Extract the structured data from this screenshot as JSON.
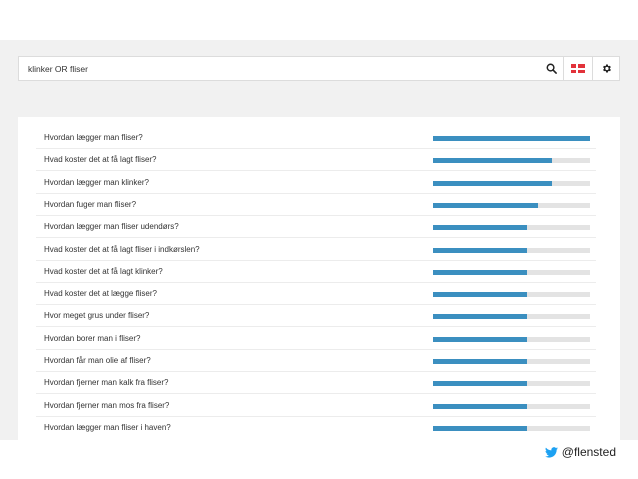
{
  "search": {
    "query": "klinker OR fliser"
  },
  "results": [
    {
      "question": "Hvordan lægger man fliser?",
      "level": 1.0
    },
    {
      "question": "Hvad koster det at få lagt fliser?",
      "level": 0.76
    },
    {
      "question": "Hvordan lægger man klinker?",
      "level": 0.76
    },
    {
      "question": "Hvordan fuger man fliser?",
      "level": 0.67
    },
    {
      "question": "Hvordan lægger man fliser udendørs?",
      "level": 0.6
    },
    {
      "question": "Hvad koster det at få lagt fliser i indkørslen?",
      "level": 0.6
    },
    {
      "question": "Hvad koster det at få lagt klinker?",
      "level": 0.6
    },
    {
      "question": "Hvad koster det at lægge fliser?",
      "level": 0.6
    },
    {
      "question": "Hvor meget grus under fliser?",
      "level": 0.6
    },
    {
      "question": "Hvordan borer man i fliser?",
      "level": 0.6
    },
    {
      "question": "Hvordan får man olie af fliser?",
      "level": 0.6
    },
    {
      "question": "Hvordan fjerner man kalk fra fliser?",
      "level": 0.6
    },
    {
      "question": "Hvordan fjerner man mos fra fliser?",
      "level": 0.6
    },
    {
      "question": "Hvordan lægger man fliser i haven?",
      "level": 0.6
    }
  ],
  "footer": {
    "twitter_handle": "@flensted"
  },
  "colors": {
    "bar": "#3b8fc0",
    "track": "#e3e3e3",
    "flag_red": "#e2323a",
    "twitter_blue": "#1da1f2"
  },
  "icons": {
    "search": "search-icon",
    "language": "danish-flag-icon",
    "settings": "gear-icon",
    "twitter": "twitter-bird-icon"
  }
}
